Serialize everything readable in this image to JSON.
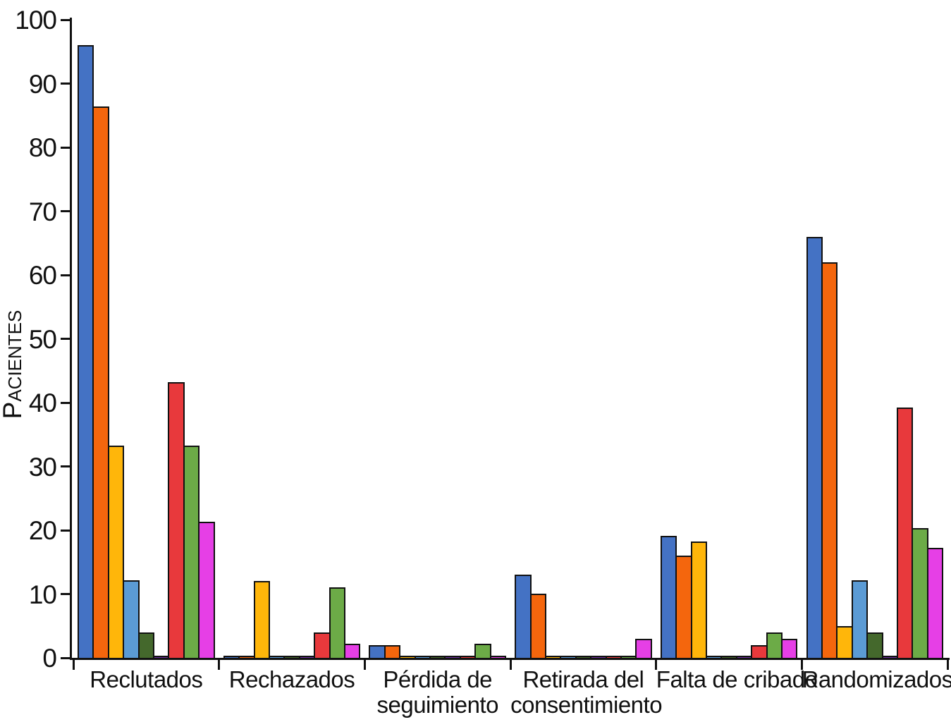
{
  "chart_data": {
    "type": "bar",
    "title": "",
    "ylabel": "Pacientes",
    "xlabel": "",
    "ylim": [
      0,
      100
    ],
    "yticks": [
      0,
      10,
      20,
      30,
      40,
      50,
      60,
      70,
      80,
      90,
      100
    ],
    "grid": false,
    "legend": "none",
    "categories": [
      "Reclutados",
      "Rechazados",
      "Pérdida de seguimiento",
      "Retirada del consentimiento",
      "Falta de cribado",
      "Randomizados"
    ],
    "category_label_lines": [
      [
        "Reclutados"
      ],
      [
        "Rechazados"
      ],
      [
        "Pérdida de",
        "seguimiento"
      ],
      [
        "Retirada del",
        "consentimiento"
      ],
      [
        "Falta de cribado"
      ],
      [
        "Randomizados"
      ]
    ],
    "series": [
      {
        "name": "serie-azul",
        "color": "#4472C4",
        "values": [
          96,
          0.3,
          2,
          13,
          19.1,
          66
        ]
      },
      {
        "name": "serie-naranja",
        "color": "#F4660D",
        "values": [
          86.4,
          0.3,
          2,
          10.1,
          16,
          62
        ]
      },
      {
        "name": "serie-ambar",
        "color": "#FFB60A",
        "values": [
          33.3,
          12,
          0.3,
          0.3,
          18.2,
          5
        ]
      },
      {
        "name": "serie-azul-claro",
        "color": "#5B9BD5",
        "values": [
          12.2,
          0.3,
          0.3,
          0.3,
          0.3,
          12.2
        ]
      },
      {
        "name": "serie-verde-oscuro",
        "color": "#44682C",
        "values": [
          4,
          0.3,
          0.3,
          0.3,
          0.3,
          4
        ]
      },
      {
        "name": "serie-morado",
        "color": "#7030A0",
        "values": [
          0.3,
          0.3,
          0.3,
          0.3,
          0.3,
          0.3
        ]
      },
      {
        "name": "serie-rojo",
        "color": "#E8393C",
        "values": [
          43.2,
          4,
          0.3,
          0.3,
          2,
          39.2
        ]
      },
      {
        "name": "serie-verde",
        "color": "#6CAB47",
        "values": [
          33.3,
          11,
          2.2,
          0.3,
          4,
          20.3
        ]
      },
      {
        "name": "serie-magenta",
        "color": "#E63FE6",
        "values": [
          21.3,
          2.2,
          0.3,
          3,
          3,
          17.2
        ]
      }
    ]
  }
}
